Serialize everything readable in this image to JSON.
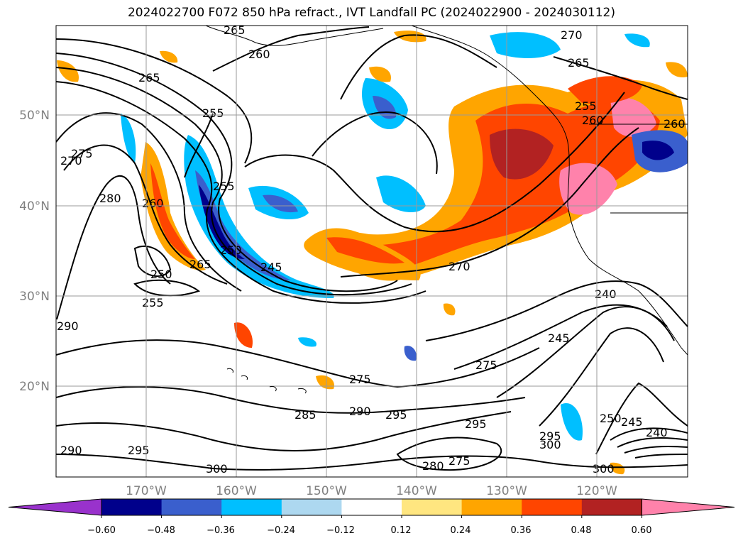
{
  "title": "2024022700 F072 850 hPa refract., IVT Landfall PC (2024022900 - 2024030112)",
  "latitude_ticks": [
    "50°N",
    "40°N",
    "30°N",
    "20°N"
  ],
  "longitude_ticks": [
    "170°W",
    "160°W",
    "150°W",
    "140°W",
    "130°W",
    "120°W"
  ],
  "contour_labels": [
    "265",
    "260",
    "270",
    "265",
    "255",
    "265",
    "255",
    "260",
    "260",
    "270",
    "275",
    "280",
    "260",
    "255",
    "250",
    "250",
    "245",
    "265",
    "255",
    "270",
    "240",
    "245",
    "250",
    "245",
    "240",
    "275",
    "275",
    "285",
    "290",
    "295",
    "295",
    "295",
    "300",
    "280",
    "275",
    "290",
    "295",
    "300",
    "300",
    "290"
  ],
  "colorbar": {
    "labels": [
      "−0.60",
      "−0.48",
      "−0.36",
      "−0.24",
      "−0.12",
      "0.12",
      "0.24",
      "0.36",
      "0.48",
      "0.60"
    ],
    "colors": [
      "#9932cc",
      "#00008b",
      "#3a5fcd",
      "#00bfff",
      "#add8f0",
      "#ffffff",
      "#ffe680",
      "#ffa500",
      "#ff4500",
      "#b22222",
      "#ff82ab"
    ]
  }
}
